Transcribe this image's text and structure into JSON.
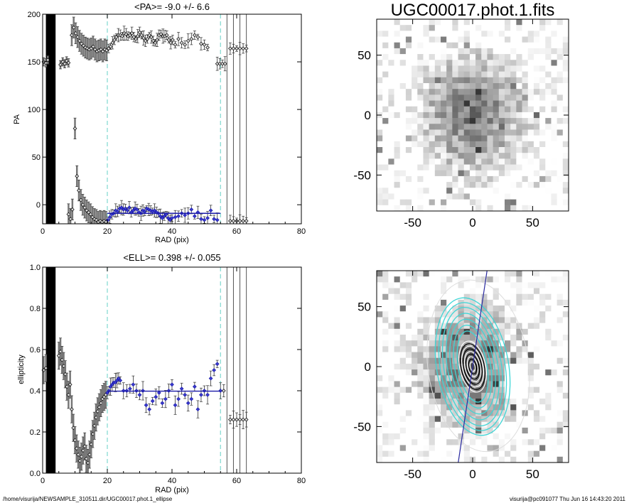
{
  "figure": {
    "right_title": "UGC00017.phot.1.fits",
    "footer_left": "/home/visurija/NEWSAMPLE_310511.dir/UGC00017.phot.1_ellipse",
    "footer_right": "visurija@pc091077  Thu Jun 16 14:43:20 2011"
  },
  "chart_data": [
    {
      "type": "scatter",
      "title": "<PA>=  -9.0 +/-   6.6",
      "xlabel": "RAD (pix)",
      "ylabel": "PA",
      "xlim": [
        0,
        80
      ],
      "ylim": [
        -20,
        200
      ],
      "x_ticks": [
        0,
        20,
        40,
        60,
        80
      ],
      "x_tick_labels": [
        "0",
        "20",
        "40",
        "60",
        "80"
      ],
      "y_ticks": [
        0,
        50,
        100,
        150,
        200
      ],
      "y_tick_labels": [
        "0",
        "50",
        "100",
        "150",
        "200"
      ],
      "vlines_dashed": [
        20,
        55
      ],
      "mean_line": {
        "x0": 20,
        "x1": 55,
        "y": -9.0,
        "color": "#1a1aa8"
      },
      "dashed_color": "#7fd8d0",
      "masked_band": [
        1,
        4
      ],
      "upper_branch": [
        [
          9.0,
          178
        ],
        [
          9.6,
          186
        ],
        [
          10.2,
          180
        ],
        [
          10.8,
          176
        ],
        [
          11.4,
          172
        ],
        [
          12.0,
          169
        ],
        [
          12.6,
          167
        ],
        [
          13.2,
          165
        ],
        [
          13.8,
          164
        ],
        [
          14.4,
          163
        ],
        [
          15.0,
          164
        ],
        [
          15.6,
          166
        ],
        [
          16.2,
          163
        ],
        [
          16.8,
          161
        ],
        [
          17.4,
          162
        ],
        [
          18.0,
          163
        ],
        [
          18.6,
          161
        ],
        [
          19.2,
          163
        ],
        [
          19.8,
          162
        ],
        [
          20.4,
          164
        ],
        [
          21.0,
          166
        ],
        [
          21.6,
          170
        ],
        [
          22.2,
          173
        ],
        [
          22.8,
          176
        ],
        [
          23.4,
          178
        ],
        [
          24.0,
          178
        ],
        [
          24.6,
          177
        ],
        [
          25.2,
          180
        ],
        [
          25.8,
          179
        ],
        [
          26.4,
          177
        ],
        [
          27.0,
          178
        ],
        [
          27.6,
          180
        ],
        [
          28.2,
          176
        ],
        [
          28.8,
          174
        ],
        [
          29.4,
          177
        ],
        [
          30.0,
          181
        ],
        [
          30.6,
          178
        ],
        [
          31.2,
          175
        ],
        [
          31.8,
          172
        ],
        [
          32.4,
          174
        ],
        [
          33.0,
          178
        ],
        [
          33.6,
          176
        ],
        [
          34.2,
          172
        ],
        [
          34.8,
          170
        ],
        [
          35.4,
          173
        ],
        [
          36.0,
          178
        ],
        [
          36.6,
          179
        ],
        [
          37.2,
          177
        ],
        [
          37.8,
          177
        ],
        [
          38.4,
          178
        ],
        [
          39.0,
          173
        ],
        [
          39.6,
          170
        ],
        [
          40.2,
          173
        ],
        [
          41.0,
          168
        ],
        [
          42.0,
          174
        ],
        [
          43.0,
          170
        ],
        [
          44.0,
          168
        ],
        [
          45.0,
          172
        ],
        [
          46.0,
          174
        ],
        [
          47.0,
          178
        ],
        [
          48.0,
          176
        ],
        [
          49.0,
          169
        ],
        [
          50.0,
          168
        ],
        [
          51.0,
          165
        ],
        [
          54.0,
          148
        ],
        [
          54.8,
          148
        ],
        [
          55.6,
          148
        ],
        [
          56.4,
          148
        ],
        [
          58.0,
          164
        ],
        [
          59.0,
          164
        ],
        [
          60.0,
          164
        ],
        [
          61.0,
          164
        ],
        [
          62.0,
          164
        ],
        [
          63.0,
          164
        ]
      ],
      "lower_branch": [
        [
          8.0,
          -10
        ],
        [
          8.6,
          -15
        ],
        [
          9.2,
          -5
        ],
        [
          10.0,
          80
        ],
        [
          10.6,
          30
        ],
        [
          11.2,
          15
        ],
        [
          11.8,
          5
        ],
        [
          12.4,
          0
        ],
        [
          13.0,
          -3
        ],
        [
          13.6,
          -6
        ],
        [
          14.2,
          -8
        ],
        [
          14.8,
          -10
        ],
        [
          15.4,
          -13
        ],
        [
          16.0,
          -15
        ],
        [
          16.6,
          -16
        ],
        [
          17.2,
          -18
        ],
        [
          17.8,
          -17
        ],
        [
          18.4,
          -18
        ],
        [
          19.0,
          -17
        ],
        [
          19.6,
          -18
        ],
        [
          20.2,
          -16
        ],
        [
          20.8,
          -13
        ],
        [
          21.4,
          -10
        ],
        [
          22.0,
          -9
        ],
        [
          22.6,
          -6
        ],
        [
          23.2,
          -7
        ],
        [
          23.8,
          -4
        ],
        [
          24.4,
          -3
        ],
        [
          25.0,
          -5
        ],
        [
          25.6,
          -4
        ],
        [
          26.2,
          -6
        ],
        [
          26.8,
          -3
        ],
        [
          27.4,
          -8
        ],
        [
          28.0,
          -6
        ],
        [
          28.6,
          -4
        ],
        [
          29.2,
          -5
        ],
        [
          29.8,
          -8
        ],
        [
          30.4,
          -9
        ],
        [
          31.0,
          -6
        ],
        [
          31.6,
          -7
        ],
        [
          32.2,
          -4
        ],
        [
          32.8,
          -5
        ],
        [
          33.4,
          -6
        ],
        [
          34.0,
          -7
        ],
        [
          34.6,
          -6
        ],
        [
          35.2,
          -8
        ],
        [
          35.8,
          -9
        ],
        [
          36.4,
          -12
        ],
        [
          37.0,
          -14
        ],
        [
          37.6,
          -12
        ],
        [
          38.2,
          -10
        ],
        [
          38.8,
          -14
        ],
        [
          39.4,
          -16
        ],
        [
          40.0,
          -14
        ],
        [
          41.0,
          -13
        ],
        [
          42.0,
          -12
        ],
        [
          43.0,
          -9
        ],
        [
          44.0,
          -11
        ],
        [
          45.0,
          -9
        ],
        [
          46.0,
          -5
        ],
        [
          47.0,
          -12
        ],
        [
          48.0,
          -8
        ],
        [
          49.0,
          -15
        ],
        [
          50.0,
          -16
        ],
        [
          51.0,
          -14
        ],
        [
          52.0,
          -6
        ],
        [
          53.0,
          -15
        ],
        [
          54.0,
          -16
        ],
        [
          58.0,
          -17
        ],
        [
          59.0,
          -17
        ],
        [
          60.0,
          -17
        ],
        [
          61.0,
          -17
        ],
        [
          62.0,
          -17
        ],
        [
          63.0,
          -17
        ]
      ],
      "left_cluster": [
        [
          0.3,
          150
        ],
        [
          1.0,
          149
        ],
        [
          1.6,
          152
        ],
        [
          5.5,
          147
        ],
        [
          6.2,
          150
        ],
        [
          6.8,
          148
        ],
        [
          7.4,
          151
        ],
        [
          8.0,
          149
        ]
      ]
    },
    {
      "type": "scatter",
      "title": "<ELL>= 0.398 +/-  0.055",
      "xlabel": "RAD (pix)",
      "ylabel": "ellipticity",
      "xlim": [
        0,
        80
      ],
      "ylim": [
        0.0,
        1.0
      ],
      "x_ticks": [
        0,
        20,
        40,
        60,
        80
      ],
      "x_tick_labels": [
        "0",
        "20",
        "40",
        "60",
        "80"
      ],
      "y_ticks": [
        0.0,
        0.2,
        0.4,
        0.6,
        0.8,
        1.0
      ],
      "y_tick_labels": [
        "0.0",
        "0.2",
        "0.4",
        "0.6",
        "0.8",
        "1.0"
      ],
      "vlines_dashed": [
        20,
        55
      ],
      "mean_line": {
        "x0": 20,
        "x1": 55,
        "y": 0.398,
        "color": "#1a1aa8"
      },
      "dashed_color": "#7fd8d0",
      "masked_band": [
        1,
        4
      ],
      "points": [
        [
          0.3,
          0.5
        ],
        [
          1.0,
          0.51
        ],
        [
          5.0,
          0.57
        ],
        [
          5.5,
          0.59
        ],
        [
          6.0,
          0.55
        ],
        [
          6.5,
          0.52
        ],
        [
          7.0,
          0.48
        ],
        [
          7.5,
          0.42
        ],
        [
          8.0,
          0.38
        ],
        [
          8.5,
          0.43
        ],
        [
          9.0,
          0.31
        ],
        [
          9.5,
          0.22
        ],
        [
          10.0,
          0.16
        ],
        [
          10.5,
          0.12
        ],
        [
          11.0,
          0.09
        ],
        [
          11.5,
          0.06
        ],
        [
          12.0,
          0.08
        ],
        [
          12.5,
          0.11
        ],
        [
          13.0,
          0.13
        ],
        [
          13.5,
          0.07
        ],
        [
          14.0,
          0.05
        ],
        [
          14.5,
          0.09
        ],
        [
          15.0,
          0.14
        ],
        [
          15.5,
          0.19
        ],
        [
          16.0,
          0.23
        ],
        [
          16.5,
          0.27
        ],
        [
          17.0,
          0.3
        ],
        [
          17.5,
          0.32
        ],
        [
          18.0,
          0.34
        ],
        [
          18.5,
          0.36
        ],
        [
          19.0,
          0.37
        ],
        [
          19.5,
          0.38
        ],
        [
          20.0,
          0.39
        ],
        [
          20.5,
          0.4
        ],
        [
          21.0,
          0.42
        ],
        [
          21.5,
          0.43
        ],
        [
          22.0,
          0.44
        ],
        [
          22.5,
          0.44
        ],
        [
          23.0,
          0.45
        ],
        [
          23.5,
          0.46
        ],
        [
          24.0,
          0.45
        ],
        [
          25.0,
          0.4
        ],
        [
          26.0,
          0.4
        ],
        [
          27.0,
          0.41
        ],
        [
          28.0,
          0.43
        ],
        [
          29.0,
          0.4
        ],
        [
          30.0,
          0.38
        ],
        [
          31.0,
          0.4
        ],
        [
          32.0,
          0.33
        ],
        [
          33.0,
          0.31
        ],
        [
          34.0,
          0.35
        ],
        [
          35.0,
          0.37
        ],
        [
          36.0,
          0.39
        ],
        [
          37.0,
          0.34
        ],
        [
          38.0,
          0.36
        ],
        [
          39.0,
          0.4
        ],
        [
          40.0,
          0.43
        ],
        [
          41.0,
          0.33
        ],
        [
          42.0,
          0.36
        ],
        [
          43.0,
          0.41
        ],
        [
          44.0,
          0.38
        ],
        [
          45.0,
          0.34
        ],
        [
          46.0,
          0.36
        ],
        [
          47.0,
          0.42
        ],
        [
          48.0,
          0.31
        ],
        [
          49.0,
          0.38
        ],
        [
          50.0,
          0.4
        ],
        [
          51.0,
          0.38
        ],
        [
          52.0,
          0.46
        ],
        [
          53.0,
          0.5
        ],
        [
          54.0,
          0.53
        ],
        [
          55.0,
          0.4
        ],
        [
          56.0,
          0.4
        ],
        [
          58.0,
          0.26
        ],
        [
          59.0,
          0.26
        ],
        [
          60.0,
          0.26
        ],
        [
          61.0,
          0.26
        ],
        [
          62.0,
          0.26
        ],
        [
          63.0,
          0.26
        ]
      ]
    },
    {
      "type": "heatmap",
      "title": "UGC00017.phot.1.fits",
      "xlim": [
        -80,
        80
      ],
      "ylim": [
        -80,
        80
      ],
      "x_ticks": [
        -50,
        0,
        50
      ],
      "x_tick_labels": [
        "-50",
        "0",
        "50"
      ],
      "y_ticks": [
        -50,
        0,
        50
      ],
      "y_tick_labels": [
        "-50",
        "0",
        "50"
      ]
    },
    {
      "type": "heatmap",
      "xlim": [
        -80,
        80
      ],
      "ylim": [
        -80,
        80
      ],
      "x_ticks": [
        -50,
        0,
        50
      ],
      "x_tick_labels": [
        "-50",
        "0",
        "50"
      ],
      "y_ticks": [
        -50,
        0,
        50
      ],
      "y_tick_labels": [
        "-50",
        "0",
        "50"
      ],
      "overlay_colors": {
        "contours": "#3fd6d6",
        "inner": "#ffffff",
        "axis": "#2a2aa0"
      }
    }
  ]
}
